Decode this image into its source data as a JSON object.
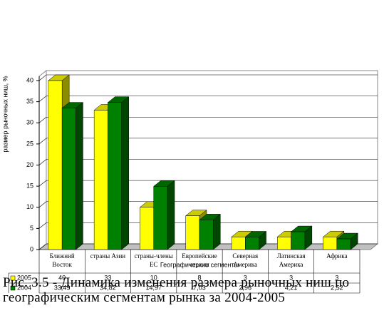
{
  "chart_data": {
    "type": "bar3d",
    "y_label": "размер рыночных ниш, %",
    "x_label": "Географические сегменты",
    "caption": "Рис. 3.5 - Динамика изменения размера рыночных ниш по географическим сегментам рынка за 2004-2005",
    "categories": [
      "Ближний Восток",
      "страны Азии",
      "страны-члены ЕС",
      "Европейские страны",
      "Северная Америка",
      "Латинская Америка",
      "Африка"
    ],
    "series": [
      {
        "name": "2005",
        "color": "#ffff00",
        "values": [
          40,
          33,
          10,
          8,
          3,
          3,
          3
        ]
      },
      {
        "name": "2004",
        "color": "#008000",
        "values": [
          33.49,
          34.82,
          14.97,
          7.03,
          2.96,
          4.21,
          2.52
        ],
        "value_labels": [
          "33,49",
          "34,82",
          "14,97",
          "7,03",
          "2,96",
          "4,21",
          "2,52"
        ]
      }
    ],
    "ylim": [
      0,
      40
    ],
    "yticks": [
      0,
      5,
      10,
      15,
      20,
      25,
      30,
      35,
      40
    ],
    "grid": true
  }
}
